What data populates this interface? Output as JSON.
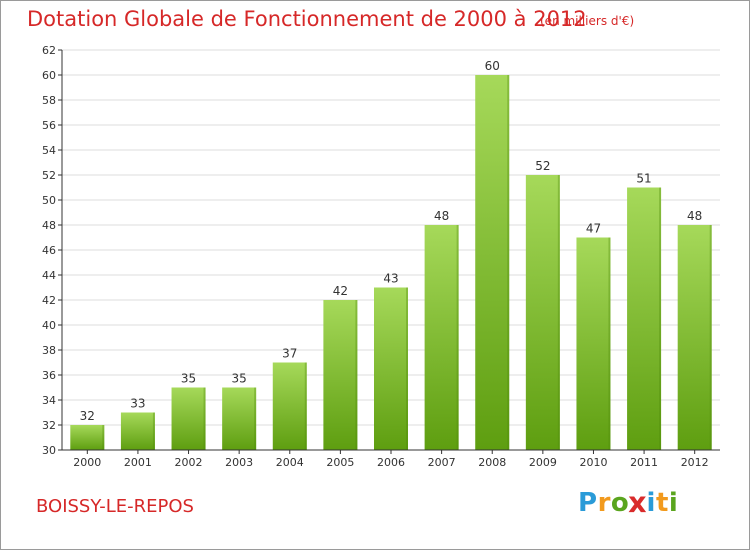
{
  "title": "Dotation Globale de Fonctionnement de 2000 à 2012",
  "subtitle": "(en milliers d'€)",
  "city": "BOISSY-LE-REPOS",
  "logo": {
    "letters": [
      "P",
      "r",
      "o",
      "x",
      "i",
      "t",
      "i"
    ],
    "colors": [
      "#2a9bd8",
      "#f29a1d",
      "#5aa51e",
      "#d92b2b",
      "#2a9bd8",
      "#f29a1d",
      "#5aa51e"
    ]
  },
  "colors": {
    "title": "#d62828",
    "bar_top": "#a6d95a",
    "bar_bottom": "#5e9e10",
    "grid": "#dddddd",
    "axis": "#333333"
  },
  "chart_data": {
    "type": "bar",
    "categories": [
      "2000",
      "2001",
      "2002",
      "2003",
      "2004",
      "2005",
      "2006",
      "2007",
      "2008",
      "2009",
      "2010",
      "2011",
      "2012"
    ],
    "values": [
      32,
      33,
      35,
      35,
      37,
      42,
      43,
      48,
      60,
      52,
      47,
      51,
      48
    ],
    "title": "Dotation Globale de Fonctionnement de 2000 à 2012",
    "subtitle": "(en milliers d'€)",
    "ylim": [
      30,
      62
    ],
    "yticks": [
      30,
      32,
      34,
      36,
      38,
      40,
      42,
      44,
      46,
      48,
      50,
      52,
      54,
      56,
      58,
      60,
      62
    ],
    "grid": true,
    "data_labels": true
  }
}
